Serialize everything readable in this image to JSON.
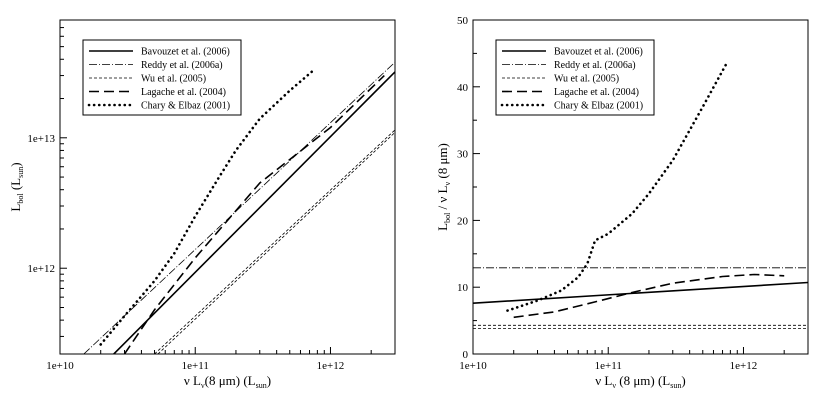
{
  "chart_data": [
    {
      "type": "line",
      "xscale": "log",
      "yscale": "log",
      "xlim": [
        10000000000,
        3000000000000
      ],
      "ylim": [
        220000000000,
        80000000000000
      ],
      "xticks": [
        10000000000,
        100000000000,
        1000000000000
      ],
      "xticklabels": [
        "1e+10",
        "1e+11",
        "1e+12"
      ],
      "yticks": [
        1000000000000,
        10000000000000
      ],
      "yticklabels": [
        "1e+12",
        "1e+13"
      ],
      "xlabel": {
        "main": "ν L",
        "sub1": "ν",
        "mid": "(8 μm) (L",
        "sub2": "sun",
        "end": ")"
      },
      "ylabel": {
        "main": "L",
        "sub1": "bol",
        "mid": " (L",
        "sub2": "sun",
        "end": ")"
      },
      "legend_position": "top-left",
      "series": [
        {
          "name": "Bavouzet et al. (2006)",
          "style": "solid",
          "x": [
            25000000000,
            3000000000000
          ],
          "y": [
            220000000000,
            32000000000000
          ]
        },
        {
          "name": "Reddy et al. (2006a)",
          "style": "dashdot",
          "x": [
            15000000000,
            3000000000000
          ],
          "y": [
            220000000000,
            38000000000000
          ]
        },
        {
          "name": "Wu et al. (2005)",
          "style": "thin-dashed",
          "x": [
            50000000000,
            3000000000000
          ],
          "y": [
            220000000000,
            11500000000000
          ]
        },
        {
          "name": "Wu et al. (2005)",
          "style": "thin-dashed",
          "x": [
            53000000000,
            3000000000000
          ],
          "y": [
            220000000000,
            11000000000000
          ]
        },
        {
          "name": "Lagache et al. (2004)",
          "style": "dashed",
          "x": [
            30000000000,
            50000000000,
            100000000000,
            300000000000,
            1000000000000,
            2500000000000
          ],
          "y": [
            220000000000,
            480000000000,
            1200000000000,
            4500000000000,
            12000000000000,
            30000000000000
          ]
        },
        {
          "name": "Chary & Elbaz (2001)",
          "style": "dotted",
          "x": [
            20000000000,
            30000000000,
            50000000000,
            70000000000,
            100000000000,
            150000000000,
            200000000000,
            300000000000,
            500000000000,
            750000000000
          ],
          "y": [
            260000000000,
            430000000000,
            800000000000,
            1300000000000,
            2500000000000,
            5000000000000,
            8000000000000,
            14000000000000,
            23000000000000,
            33000000000000
          ]
        }
      ]
    },
    {
      "type": "line",
      "xscale": "log",
      "yscale": "linear",
      "xlim": [
        10000000000,
        3000000000000
      ],
      "ylim": [
        0,
        50
      ],
      "xticks": [
        10000000000,
        100000000000,
        1000000000000
      ],
      "xticklabels": [
        "1e+10",
        "1e+11",
        "1e+12"
      ],
      "yticks": [
        0,
        10,
        20,
        30,
        40,
        50
      ],
      "yticklabels": [
        "0",
        "10",
        "20",
        "30",
        "40",
        "50"
      ],
      "xlabel": {
        "main": "ν L",
        "sub1": "ν",
        "mid": " (8 μm) (L",
        "sub2": "sun",
        "end": ")"
      },
      "ylabel": {
        "main": "L",
        "sub1": "bol",
        "mid": " / ν L",
        "sub2": "ν",
        "end": " (8 μm)"
      },
      "legend_position": "top-left",
      "series": [
        {
          "name": "Bavouzet et al. (2006)",
          "style": "solid",
          "x": [
            10000000000,
            3000000000000
          ],
          "y": [
            7.6,
            10.7
          ]
        },
        {
          "name": "Reddy et al. (2006a)",
          "style": "dashdot",
          "x": [
            10000000000,
            3000000000000
          ],
          "y": [
            12.9,
            12.9
          ]
        },
        {
          "name": "Wu et al. (2005)",
          "style": "thin-dashed",
          "x": [
            10000000000,
            3000000000000
          ],
          "y": [
            4.3,
            4.3
          ]
        },
        {
          "name": "Wu et al. (2005)",
          "style": "thin-dashed",
          "x": [
            10000000000,
            3000000000000
          ],
          "y": [
            3.8,
            3.8
          ]
        },
        {
          "name": "Lagache et al. (2004)",
          "style": "dashed",
          "x": [
            20000000000,
            40000000000,
            80000000000,
            150000000000,
            300000000000,
            700000000000,
            1200000000000,
            2000000000000
          ],
          "y": [
            5.5,
            6.3,
            7.8,
            9.2,
            10.6,
            11.6,
            11.9,
            11.7
          ]
        },
        {
          "name": "Chary & Elbaz (2001)",
          "style": "dotted",
          "x": [
            18000000000,
            30000000000,
            45000000000,
            60000000000,
            70000000000,
            80000000000,
            100000000000,
            150000000000,
            200000000000,
            300000000000,
            500000000000,
            750000000000
          ],
          "y": [
            6.5,
            8.0,
            9.5,
            11.5,
            13.5,
            17.0,
            18.0,
            21.0,
            24.0,
            29.0,
            37.0,
            43.5
          ]
        }
      ]
    }
  ],
  "legend": [
    {
      "label": "Bavouzet et al. (2006)",
      "style": "solid"
    },
    {
      "label": "Reddy et al. (2006a)",
      "style": "dashdot"
    },
    {
      "label": "Wu et al. (2005)",
      "style": "thin-dashed"
    },
    {
      "label": "Lagache et al. (2004)",
      "style": "dashed"
    },
    {
      "label": "Chary & Elbaz (2001)",
      "style": "dotted"
    }
  ]
}
